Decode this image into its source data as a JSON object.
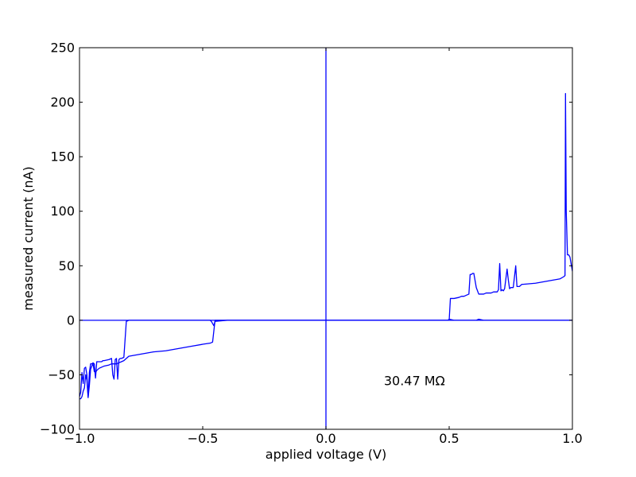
{
  "chart_data": {
    "type": "line",
    "title": "",
    "xlabel": "applied voltage (V)",
    "ylabel": "measured current (nA)",
    "xlim": [
      -1.0,
      1.0
    ],
    "ylim": [
      -100,
      250
    ],
    "xticks": [
      -1.0,
      -0.5,
      0.0,
      0.5,
      1.0
    ],
    "xtick_labels": [
      "−1.0",
      "−0.5",
      "0.0",
      "0.5",
      "1.0"
    ],
    "yticks": [
      -100,
      -50,
      0,
      50,
      100,
      150,
      200,
      250
    ],
    "ytick_labels": [
      "−100",
      "−50",
      "0",
      "50",
      "100",
      "150",
      "200",
      "250"
    ],
    "grid": false,
    "legend": "none",
    "line_color": "#0000ff",
    "annotation": {
      "text": "30.47 MΩ",
      "x": 0.23,
      "y": -55
    },
    "reference_lines": {
      "horizontal_y": 0,
      "vertical_x": 0
    },
    "series": [
      {
        "x": [
          -1.0,
          -0.995,
          -0.99,
          -0.985,
          -0.98,
          -0.975,
          -0.97,
          -0.965,
          -0.96,
          -0.955,
          -0.95,
          -0.945,
          -0.94,
          -0.935,
          -0.93,
          -0.925,
          -0.92,
          -0.915,
          -0.91,
          -0.905,
          -0.9,
          -0.88,
          -0.87,
          -0.865,
          -0.86,
          -0.855,
          -0.85,
          -0.845,
          -0.84,
          -0.835,
          -0.83,
          -0.82,
          -0.81,
          -0.8,
          -0.75,
          -0.7,
          -0.65,
          -0.6,
          -0.55,
          -0.5,
          -0.47,
          -0.465,
          -0.46,
          -0.455,
          -0.45,
          -0.4,
          -0.35,
          -0.3,
          -0.2,
          -0.1,
          0.0,
          0.1,
          0.2,
          0.3,
          0.4,
          0.48,
          0.495,
          0.5,
          0.52,
          0.55,
          0.56,
          0.575,
          0.585,
          0.595,
          0.6,
          0.61,
          0.62,
          0.64,
          0.66,
          0.68,
          0.685,
          0.69,
          0.695,
          0.7,
          0.705,
          0.71,
          0.715,
          0.72,
          0.73,
          0.74,
          0.75,
          0.755,
          0.76,
          0.765,
          0.77,
          0.78,
          0.79,
          0.8,
          0.85,
          0.9,
          0.95,
          0.96,
          0.965,
          0.97,
          0.972,
          0.974,
          0.976,
          0.98,
          0.985,
          0.99,
          1.0
        ],
        "y": [
          -70,
          -66,
          -48,
          -58,
          -44,
          -43,
          -50,
          -70,
          -48,
          -40,
          -40,
          -39,
          -40,
          -53,
          -38,
          -38,
          -38,
          -38,
          -38,
          -37,
          -37,
          -36,
          -35,
          -50,
          -54,
          -36,
          -35,
          -54,
          -36,
          -35,
          -35,
          -34,
          -1,
          0,
          0,
          0,
          0,
          0,
          0,
          0,
          0,
          -1,
          -3,
          -5,
          -1,
          0,
          0,
          0,
          0,
          0,
          0,
          0,
          0,
          0,
          0,
          0,
          0,
          1,
          0,
          0,
          0,
          0,
          0,
          0,
          0,
          0,
          1,
          0,
          0,
          0,
          0,
          0,
          0,
          0,
          0,
          0,
          0,
          0,
          0,
          0,
          0,
          0,
          0,
          0,
          0,
          0,
          0,
          0,
          0,
          0,
          0,
          0,
          0,
          0,
          0,
          0,
          0,
          0,
          0,
          0,
          0
        ]
      },
      {
        "x": [
          1.0,
          0.99,
          0.985,
          0.98,
          0.975,
          0.972,
          0.97,
          0.965,
          0.95,
          0.9,
          0.85,
          0.8,
          0.795,
          0.79,
          0.785,
          0.78,
          0.775,
          0.77,
          0.76,
          0.755,
          0.75,
          0.745,
          0.74,
          0.735,
          0.73,
          0.725,
          0.72,
          0.715,
          0.71,
          0.705,
          0.7,
          0.695,
          0.69,
          0.685,
          0.68,
          0.67,
          0.65,
          0.64,
          0.63,
          0.62,
          0.61,
          0.6,
          0.595,
          0.59,
          0.585,
          0.58,
          0.57,
          0.56,
          0.55,
          0.54,
          0.52,
          0.505,
          0.5,
          0.495,
          0.49,
          0.4,
          0.3,
          0.2,
          0.1,
          0.0,
          -0.1,
          -0.2,
          -0.3,
          -0.4,
          -0.45,
          -0.46,
          -0.47,
          -0.5,
          -0.55,
          -0.6,
          -0.65,
          -0.7,
          -0.75,
          -0.8,
          -0.805,
          -0.81,
          -0.815,
          -0.82,
          -0.83,
          -0.85,
          -0.87,
          -0.88,
          -0.9,
          -0.91,
          -0.92,
          -0.925,
          -0.93,
          -0.935,
          -0.94,
          -0.945,
          -0.95,
          -0.955,
          -0.96,
          -0.965,
          -0.97,
          -0.975,
          -0.98,
          -0.985,
          -0.99,
          -0.995,
          -1.0
        ],
        "y": [
          45,
          58,
          60,
          60,
          100,
          208,
          41,
          40,
          38,
          36,
          34,
          33,
          33,
          32,
          31,
          31,
          31,
          50,
          30,
          30,
          30,
          29,
          37,
          47,
          38,
          29,
          27,
          28,
          27,
          52,
          28,
          26,
          26,
          26,
          26,
          25,
          25,
          24,
          24,
          24,
          30,
          43,
          43,
          42,
          42,
          24,
          23,
          22,
          22,
          21,
          20,
          20,
          0,
          0,
          0,
          0,
          0,
          0,
          0,
          0,
          0,
          0,
          0,
          0,
          0,
          -20,
          -21,
          -22,
          -24,
          -26,
          -28,
          -29,
          -31,
          -33,
          -34,
          -35,
          -36,
          -37,
          -38,
          -40,
          -40,
          -41,
          -42,
          -43,
          -44,
          -45,
          -46,
          -48,
          -47,
          -40,
          -42,
          -45,
          -60,
          -71,
          -55,
          -50,
          -62,
          -65,
          -70,
          -72,
          -72
        ]
      }
    ]
  }
}
